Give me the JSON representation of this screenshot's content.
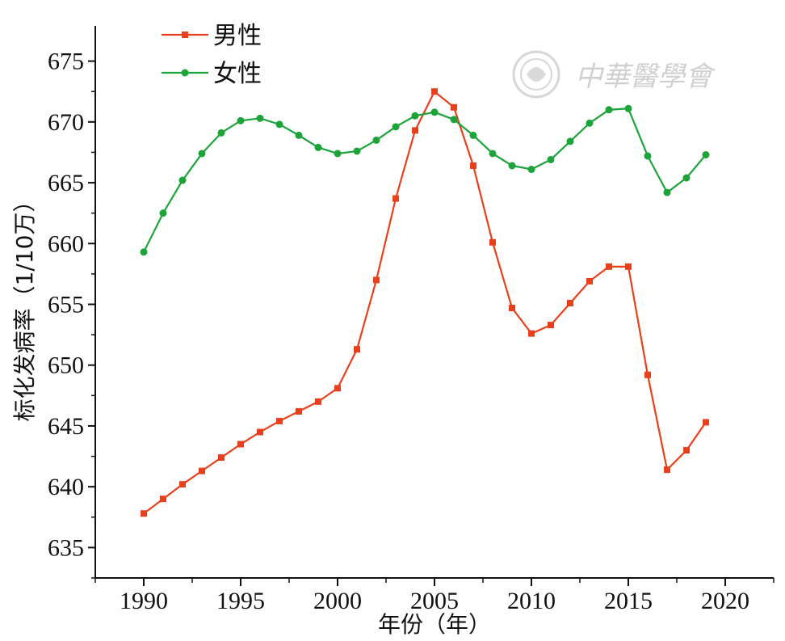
{
  "chart_data": {
    "type": "line",
    "xlabel": "年份（年）",
    "ylabel": "标化发病率（1/10万）",
    "xlim": [
      1987.5,
      2022.5
    ],
    "ylim": [
      632.5,
      677.5
    ],
    "xticks": [
      1990,
      1995,
      2000,
      2005,
      2010,
      2015,
      2020
    ],
    "yticks": [
      635,
      640,
      645,
      650,
      655,
      660,
      665,
      670,
      675
    ],
    "legend_position": "top-left",
    "grid": false,
    "x": [
      1990,
      1991,
      1992,
      1993,
      1994,
      1995,
      1996,
      1997,
      1998,
      1999,
      2000,
      2001,
      2002,
      2003,
      2004,
      2005,
      2006,
      2007,
      2008,
      2009,
      2010,
      2011,
      2012,
      2013,
      2014,
      2015,
      2016,
      2017,
      2018,
      2019
    ],
    "series": [
      {
        "name": "男性",
        "color": "#e8401c",
        "marker": "square",
        "values": [
          637.8,
          639.0,
          640.2,
          641.3,
          642.4,
          643.5,
          644.5,
          645.4,
          646.2,
          647.0,
          648.1,
          651.3,
          657.0,
          663.7,
          669.3,
          672.5,
          671.2,
          666.4,
          660.1,
          654.7,
          652.6,
          653.3,
          655.1,
          656.9,
          658.1,
          658.1,
          649.2,
          641.4,
          643.0,
          645.3
        ]
      },
      {
        "name": "女性",
        "color": "#1ca33a",
        "marker": "circle",
        "values": [
          659.3,
          662.5,
          665.2,
          667.4,
          669.1,
          670.1,
          670.3,
          669.8,
          668.9,
          667.9,
          667.4,
          667.6,
          668.5,
          669.6,
          670.5,
          670.8,
          670.2,
          668.9,
          667.4,
          666.4,
          666.1,
          666.9,
          668.4,
          669.9,
          671.0,
          671.1,
          667.2,
          664.2,
          665.4,
          667.3
        ]
      }
    ]
  },
  "watermark": {
    "text": "中華醫學會",
    "icon": "medical-association-seal-icon"
  }
}
